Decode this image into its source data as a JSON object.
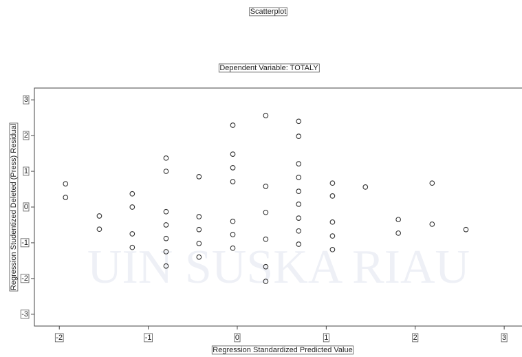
{
  "chart_data": {
    "type": "scatter",
    "title": "Scatterplot",
    "subtitle": "Dependent Variable: TOTALY",
    "x_label": "Regression Standardized Predicted Value",
    "y_label": "Regression Studentized Deleted (Press) Residual",
    "watermark": "UIN SUSKA RIAU",
    "color": "#333333",
    "xlim": [
      -2.28,
      3.2
    ],
    "ylim": [
      -3.33,
      3.33
    ],
    "xticks": [
      -2,
      -1,
      0,
      1,
      2,
      3
    ],
    "yticks": [
      -3,
      -2,
      -1,
      0,
      1,
      2,
      3
    ],
    "x": [
      -1.93,
      -1.93,
      -1.55,
      -1.55,
      -1.18,
      -1.18,
      -1.18,
      -1.18,
      -0.8,
      -0.8,
      -0.8,
      -0.8,
      -0.8,
      -0.8,
      -0.8,
      -0.43,
      -0.43,
      -0.43,
      -0.43,
      -0.43,
      -0.05,
      -0.05,
      -0.05,
      -0.05,
      -0.05,
      -0.05,
      -0.05,
      0.32,
      0.32,
      0.32,
      0.32,
      0.32,
      0.32,
      0.69,
      0.69,
      0.69,
      0.69,
      0.69,
      0.69,
      0.69,
      0.69,
      0.69,
      1.07,
      1.07,
      1.07,
      1.07,
      1.07,
      1.44,
      1.81,
      1.81,
      2.19,
      2.19,
      2.57
    ],
    "values": [
      0.65,
      0.27,
      -0.25,
      -0.62,
      0.37,
      0,
      -0.75,
      -1.13,
      1.37,
      1.0,
      -0.13,
      -0.5,
      -0.88,
      -1.25,
      -1.65,
      0.85,
      -0.27,
      -0.63,
      -1.02,
      -1.4,
      2.29,
      1.48,
      1.1,
      0.71,
      -0.4,
      -0.77,
      -1.15,
      2.56,
      0.58,
      -0.15,
      -0.9,
      -1.67,
      -2.08,
      2.4,
      1.98,
      1.21,
      0.83,
      0.44,
      0.08,
      -0.31,
      -0.67,
      -1.04,
      0.67,
      0.31,
      -0.42,
      -0.81,
      -1.19,
      0.56,
      -0.35,
      -0.73,
      0.67,
      -0.48,
      -0.63
    ]
  }
}
